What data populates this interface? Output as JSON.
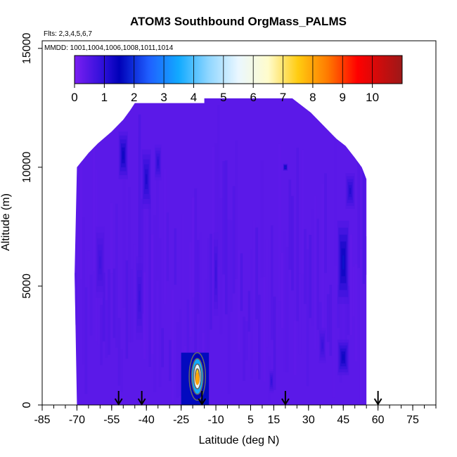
{
  "chart_data": {
    "type": "heatmap",
    "title": "ATOM3 Southbound OrgMass_PALMS",
    "flights_label": "Flts: 2,3,4,5,6,7",
    "dates_label": "MMDD: 1001,1004,1006,1008,1011,1014",
    "xlabel": "Latitude (deg N)",
    "ylabel": "Altitude (m)",
    "xlim": [
      -85,
      85
    ],
    "ylim": [
      0,
      16000
    ],
    "x_ticks": [
      -85,
      -70,
      -55,
      -40,
      -25,
      -10,
      5,
      15,
      30,
      45,
      60,
      75
    ],
    "y_ticks": [
      0,
      5000,
      10000,
      15000
    ],
    "colorbar": {
      "range": [
        0,
        11
      ],
      "ticks": [
        0,
        1,
        2,
        3,
        4,
        5,
        6,
        7,
        8,
        9,
        10
      ],
      "stops": [
        {
          "v": 0,
          "c": "#7b1ff2"
        },
        {
          "v": 1,
          "c": "#2a0fd8"
        },
        {
          "v": 1.5,
          "c": "#0000b8"
        },
        {
          "v": 2.5,
          "c": "#1f5fff"
        },
        {
          "v": 3.5,
          "c": "#12aaff"
        },
        {
          "v": 4.5,
          "c": "#8fd6ff"
        },
        {
          "v": 5.5,
          "c": "#eaf7ff"
        },
        {
          "v": 6.5,
          "c": "#fffccc"
        },
        {
          "v": 7.5,
          "c": "#ffcc11"
        },
        {
          "v": 8.5,
          "c": "#ff7a00"
        },
        {
          "v": 9.5,
          "c": "#ff0000"
        },
        {
          "v": 11,
          "c": "#9c1818"
        }
      ]
    },
    "background_value": 0.4,
    "domain_outline": [
      [
        -70,
        0
      ],
      [
        -71,
        5500
      ],
      [
        -70,
        10000
      ],
      [
        -65,
        10600
      ],
      [
        -61,
        11000
      ],
      [
        -55,
        11500
      ],
      [
        -50,
        12000
      ],
      [
        -47,
        12400
      ],
      [
        -45,
        12700
      ],
      [
        -15,
        12700
      ],
      [
        -15,
        12900
      ],
      [
        23,
        12900
      ],
      [
        27,
        12600
      ],
      [
        31,
        12300
      ],
      [
        34,
        12000
      ],
      [
        38,
        11600
      ],
      [
        42,
        11200
      ],
      [
        46,
        10900
      ],
      [
        50,
        10400
      ],
      [
        53,
        10000
      ],
      [
        55,
        9500
      ],
      [
        55,
        0
      ]
    ],
    "features": [
      {
        "lat": -50,
        "alt": 10500,
        "w": 4,
        "h": 2000,
        "value": 1.6
      },
      {
        "lat": -40,
        "alt": 9500,
        "w": 4,
        "h": 2500,
        "value": 1.3
      },
      {
        "lat": -35,
        "alt": 10200,
        "w": 3,
        "h": 1500,
        "value": 1.1
      },
      {
        "lat": -43,
        "alt": 4500,
        "w": 3,
        "h": 3500,
        "value": 0.9
      },
      {
        "lat": -60,
        "alt": 6000,
        "w": 4,
        "h": 3000,
        "value": 0.8
      },
      {
        "lat": -10,
        "alt": 5500,
        "w": 2,
        "h": 3500,
        "value": 0.9
      },
      {
        "lat": 20,
        "alt": 10000,
        "w": 2,
        "h": 300,
        "value": 2.0
      },
      {
        "lat": 45,
        "alt": 6000,
        "w": 5,
        "h": 3500,
        "value": 1.8
      },
      {
        "lat": 45,
        "alt": 2000,
        "w": 5,
        "h": 1500,
        "value": 1.6
      },
      {
        "lat": 48,
        "alt": 9000,
        "w": 4,
        "h": 1500,
        "value": 1.2
      },
      {
        "lat": 14,
        "alt": 1000,
        "w": 2,
        "h": 1000,
        "value": 1.0
      },
      {
        "lat": 36,
        "alt": 2500,
        "w": 3,
        "h": 1500,
        "value": 0.9
      }
    ],
    "plume": {
      "lat": -18,
      "alt": 1200,
      "peak_value": 8,
      "contour_levels": [
        1,
        3,
        5,
        7
      ]
    },
    "arrows_lat": [
      -52,
      -42,
      -16,
      20,
      60
    ]
  }
}
